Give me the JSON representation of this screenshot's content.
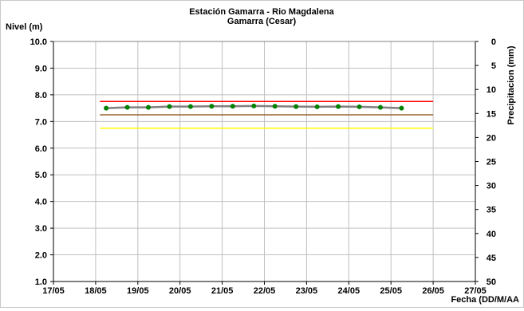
{
  "chart_data": {
    "type": "line",
    "title": "Estación Gamarra - Rio Magdalena",
    "subtitle": "Gamarra (Cesar)",
    "ylabel": "Nivel (m)",
    "y2label": "Precipitacion (mm)",
    "xlabel": "Fecha (DD/M/AA",
    "ylim": [
      1.0,
      10.0
    ],
    "y2lim": [
      0,
      50
    ],
    "y2_inverted": true,
    "xlim": [
      0,
      10
    ],
    "grid": true,
    "x_ticks": [
      "17/05",
      "18/05",
      "19/05",
      "20/05",
      "21/05",
      "22/05",
      "23/05",
      "24/05",
      "25/05",
      "26/05",
      "27/05"
    ],
    "y_ticks": [
      "10.0",
      "9.0",
      "8.0",
      "7.0",
      "6.0",
      "5.0",
      "4.0",
      "3.0",
      "2.0",
      "1.0"
    ],
    "y2_ticks": [
      "0",
      "5",
      "10",
      "15",
      "20",
      "25",
      "30",
      "35",
      "40",
      "45",
      "50"
    ],
    "series": [
      {
        "color": "#008000",
        "line_color": "#808080",
        "x": [
          1.25,
          1.75,
          2.25,
          2.75,
          3.25,
          3.75,
          4.25,
          4.75,
          5.25,
          5.75,
          6.25,
          6.75,
          7.25,
          7.75,
          8.25
        ],
        "values": [
          7.5,
          7.53,
          7.53,
          7.56,
          7.56,
          7.57,
          7.57,
          7.58,
          7.57,
          7.56,
          7.55,
          7.56,
          7.55,
          7.53,
          7.5
        ]
      }
    ],
    "reference_lines": [
      {
        "color": "#ff0000",
        "value": 7.75,
        "x": [
          1.1,
          9.0
        ]
      },
      {
        "color": "#996633",
        "value": 7.25,
        "x": [
          1.1,
          9.0
        ]
      },
      {
        "color": "#ffff00",
        "value": 6.75,
        "x": [
          1.1,
          9.0
        ]
      }
    ]
  }
}
